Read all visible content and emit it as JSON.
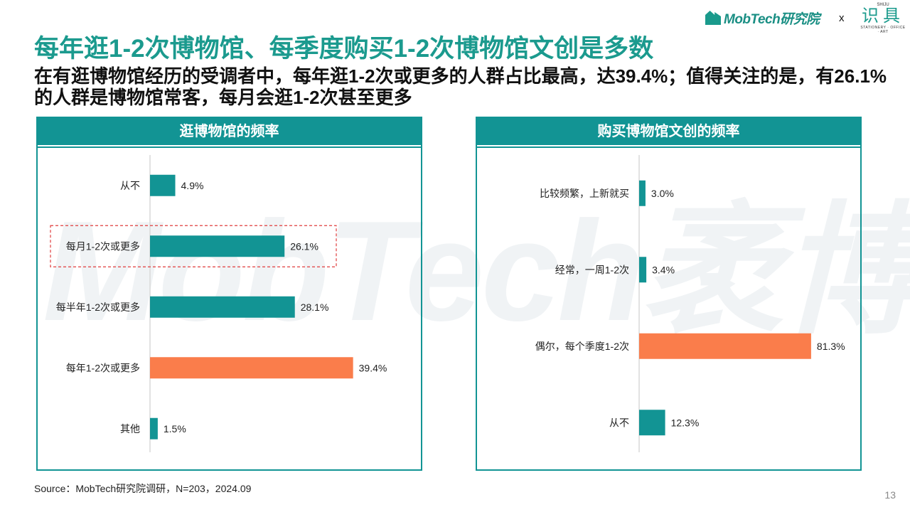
{
  "watermark": "MobTech袤博",
  "header": {
    "logo_text": "MobTech研究院",
    "separator": "x",
    "partner_top": "SHIJU",
    "partner_name": "识具",
    "partner_sub": "STATIONERY · OFFICE · ART"
  },
  "title": "每年逛1-2次博物馆、每季度购买1-2次博物馆文创是多数",
  "subtitle": "在有逛博物馆经历的受调者中，每年逛1-2次或更多的人群占比最高，达39.4%；值得关注的是，有26.1%的人群是博物馆常客，每月会逛1-2次甚至更多",
  "colors": {
    "teal": "#129494",
    "orange": "#fa7d4b",
    "highlight_border": "#e03c3c"
  },
  "chart_data": [
    {
      "type": "bar",
      "orientation": "horizontal",
      "title": "逛博物馆的频率",
      "categories": [
        "从不",
        "每月1-2次或更多",
        "每半年1-2次或更多",
        "每年1-2次或更多",
        "其他"
      ],
      "values": [
        4.9,
        26.1,
        28.1,
        39.4,
        1.5
      ],
      "labels": [
        "4.9%",
        "26.1%",
        "28.1%",
        "39.4%",
        "1.5%"
      ],
      "unit": "%",
      "highlighted_index": 3,
      "boxed_index": 1,
      "xlim": [
        0,
        40
      ]
    },
    {
      "type": "bar",
      "orientation": "horizontal",
      "title": "购买博物馆文创的频率",
      "categories": [
        "比较频繁，上新就买",
        "经常，一周1-2次",
        "偶尔，每个季度1-2次",
        "从不"
      ],
      "values": [
        3.0,
        3.4,
        81.3,
        12.3
      ],
      "labels": [
        "3.0%",
        "3.4%",
        "81.3%",
        "12.3%"
      ],
      "unit": "%",
      "highlighted_index": 2,
      "xlim": [
        0,
        82
      ]
    }
  ],
  "footer": {
    "source": "Source：MobTech研究院调研，N=203，2024.09",
    "page_number": "13"
  }
}
